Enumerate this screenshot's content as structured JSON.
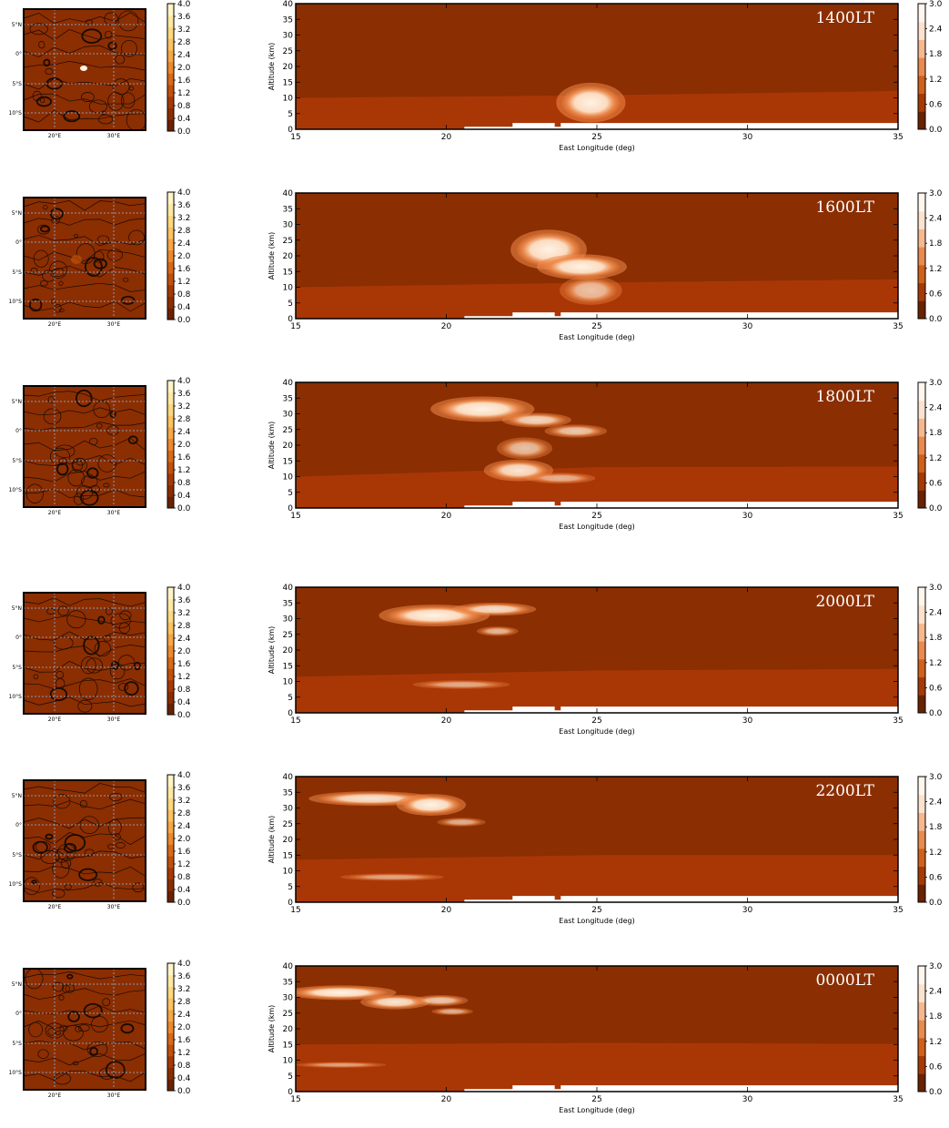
{
  "figure": {
    "map": {
      "lat_ticks": [
        "5°N",
        "0°",
        "5°S",
        "10°S"
      ],
      "lon_ticks": [
        "20°E",
        "30°E"
      ],
      "colorbar_ticks": [
        "4.0",
        "3.6",
        "3.2",
        "2.8",
        "2.4",
        "2.0",
        "1.6",
        "1.2",
        "0.8",
        "0.4",
        "0.0"
      ],
      "colorbar_colors": [
        "#6b2200",
        "#8a2e00",
        "#a53a04",
        "#c0510c",
        "#d86a18",
        "#ec8a2c",
        "#f7a745",
        "#fcc260",
        "#fdd87f",
        "#fee9a3",
        "#fff5c6"
      ]
    },
    "section": {
      "xlabel": "East Longitude (deg)",
      "ylabel": "Altitude (km)",
      "x_ticks": [
        "15",
        "20",
        "25",
        "30",
        "35"
      ],
      "y_ticks": [
        "0",
        "5",
        "10",
        "15",
        "20",
        "25",
        "30",
        "35",
        "40"
      ],
      "colorbar_ticks": [
        "3.0",
        "2.4",
        "1.8",
        "1.2",
        "0.6",
        "0.0"
      ],
      "colorbar_colors": [
        "#6b2200",
        "#a53a04",
        "#d0601a",
        "#e98a4e",
        "#f6b88e",
        "#fde3cf",
        "#fff7ee"
      ]
    },
    "colors": {
      "background": "#8b2e02",
      "boundary_layer": "#a93706",
      "terrain": "#ffffff",
      "cloud_edge": "#f08a4a",
      "cloud_core": "#fff3e6"
    }
  },
  "chart_data": [
    {
      "type": "heatmap",
      "label": "1400LT",
      "xlabel": "East Longitude (deg)",
      "ylabel": "Altitude (km)",
      "xlim": [
        15,
        35
      ],
      "ylim": [
        0,
        40
      ],
      "colorbar_range": [
        0.0,
        3.0
      ],
      "boundary_layer_top_km": [
        [
          15,
          10.0
        ],
        [
          25,
          10.8
        ],
        [
          35,
          12.2
        ]
      ],
      "clouds": [
        {
          "lon_center": 24.8,
          "alt_center": 8.5,
          "half_width_deg": 1.0,
          "half_height_km": 5.5,
          "max": 3.0
        }
      ]
    },
    {
      "type": "heatmap",
      "label": "1600LT",
      "xlabel": "East Longitude (deg)",
      "ylabel": "Altitude (km)",
      "xlim": [
        15,
        35
      ],
      "ylim": [
        0,
        40
      ],
      "colorbar_range": [
        0.0,
        3.0
      ],
      "boundary_layer_top_km": [
        [
          15,
          10.0
        ],
        [
          25,
          11.5
        ],
        [
          35,
          12.5
        ]
      ],
      "clouds": [
        {
          "lon_center": 23.4,
          "alt_center": 22.0,
          "half_width_deg": 1.1,
          "half_height_km": 5.5,
          "max": 3.0
        },
        {
          "lon_center": 24.5,
          "alt_center": 16.5,
          "half_width_deg": 1.3,
          "half_height_km": 3.5,
          "max": 3.0
        },
        {
          "lon_center": 24.8,
          "alt_center": 9.0,
          "half_width_deg": 0.9,
          "half_height_km": 4.0,
          "max": 1.6
        }
      ]
    },
    {
      "type": "heatmap",
      "label": "1800LT",
      "xlabel": "East Longitude (deg)",
      "ylabel": "Altitude (km)",
      "xlim": [
        15,
        35
      ],
      "ylim": [
        0,
        40
      ],
      "colorbar_range": [
        0.0,
        3.0
      ],
      "boundary_layer_top_km": [
        [
          15,
          10.0
        ],
        [
          25,
          13.0
        ],
        [
          35,
          13.2
        ]
      ],
      "clouds": [
        {
          "lon_center": 21.2,
          "alt_center": 31.5,
          "half_width_deg": 1.5,
          "half_height_km": 3.5,
          "max": 3.0
        },
        {
          "lon_center": 23.0,
          "alt_center": 28.0,
          "half_width_deg": 1.0,
          "half_height_km": 2.0,
          "max": 2.2
        },
        {
          "lon_center": 24.3,
          "alt_center": 24.5,
          "half_width_deg": 0.9,
          "half_height_km": 1.8,
          "max": 1.8
        },
        {
          "lon_center": 22.6,
          "alt_center": 19.0,
          "half_width_deg": 0.8,
          "half_height_km": 3.0,
          "max": 1.6
        },
        {
          "lon_center": 22.4,
          "alt_center": 12.0,
          "half_width_deg": 1.0,
          "half_height_km": 3.0,
          "max": 2.6
        },
        {
          "lon_center": 23.8,
          "alt_center": 9.5,
          "half_width_deg": 1.0,
          "half_height_km": 1.5,
          "max": 1.2
        }
      ]
    },
    {
      "type": "heatmap",
      "label": "2000LT",
      "xlabel": "East Longitude (deg)",
      "ylabel": "Altitude (km)",
      "xlim": [
        15,
        35
      ],
      "ylim": [
        0,
        40
      ],
      "colorbar_range": [
        0.0,
        3.0
      ],
      "boundary_layer_top_km": [
        [
          15,
          11.5
        ],
        [
          25,
          13.5
        ],
        [
          35,
          14.0
        ]
      ],
      "clouds": [
        {
          "lon_center": 19.6,
          "alt_center": 31.0,
          "half_width_deg": 1.6,
          "half_height_km": 3.0,
          "max": 3.0
        },
        {
          "lon_center": 21.6,
          "alt_center": 33.0,
          "half_width_deg": 1.2,
          "half_height_km": 1.8,
          "max": 2.4
        },
        {
          "lon_center": 21.7,
          "alt_center": 26.0,
          "half_width_deg": 0.6,
          "half_height_km": 1.3,
          "max": 1.4
        },
        {
          "lon_center": 20.5,
          "alt_center": 9.0,
          "half_width_deg": 1.4,
          "half_height_km": 1.2,
          "max": 1.0
        }
      ]
    },
    {
      "type": "heatmap",
      "label": "2200LT",
      "xlabel": "East Longitude (deg)",
      "ylabel": "Altitude (km)",
      "xlim": [
        15,
        35
      ],
      "ylim": [
        0,
        40
      ],
      "colorbar_range": [
        0.0,
        3.0
      ],
      "boundary_layer_top_km": [
        [
          15,
          13.5
        ],
        [
          25,
          15.0
        ],
        [
          35,
          15.0
        ]
      ],
      "clouds": [
        {
          "lon_center": 17.5,
          "alt_center": 33.0,
          "half_width_deg": 1.8,
          "half_height_km": 2.0,
          "max": 2.6
        },
        {
          "lon_center": 19.5,
          "alt_center": 31.0,
          "half_width_deg": 1.0,
          "half_height_km": 3.0,
          "max": 3.0
        },
        {
          "lon_center": 20.5,
          "alt_center": 25.5,
          "half_width_deg": 0.7,
          "half_height_km": 1.2,
          "max": 1.2
        },
        {
          "lon_center": 18.2,
          "alt_center": 8.0,
          "half_width_deg": 1.5,
          "half_height_km": 1.0,
          "max": 0.9
        }
      ]
    },
    {
      "type": "heatmap",
      "label": "0000LT",
      "xlabel": "East Longitude (deg)",
      "ylabel": "Altitude (km)",
      "xlim": [
        15,
        35
      ],
      "ylim": [
        0,
        40
      ],
      "colorbar_range": [
        0.0,
        3.0
      ],
      "boundary_layer_top_km": [
        [
          15,
          15.0
        ],
        [
          25,
          15.5
        ],
        [
          35,
          15.2
        ]
      ],
      "clouds": [
        {
          "lon_center": 16.5,
          "alt_center": 31.5,
          "half_width_deg": 1.6,
          "half_height_km": 2.0,
          "max": 3.0
        },
        {
          "lon_center": 18.3,
          "alt_center": 28.5,
          "half_width_deg": 1.0,
          "half_height_km": 2.0,
          "max": 2.6
        },
        {
          "lon_center": 19.8,
          "alt_center": 29.0,
          "half_width_deg": 0.8,
          "half_height_km": 1.5,
          "max": 1.8
        },
        {
          "lon_center": 20.2,
          "alt_center": 25.5,
          "half_width_deg": 0.6,
          "half_height_km": 1.0,
          "max": 1.2
        },
        {
          "lon_center": 16.5,
          "alt_center": 8.5,
          "half_width_deg": 1.3,
          "half_height_km": 0.8,
          "max": 0.8
        }
      ]
    }
  ]
}
